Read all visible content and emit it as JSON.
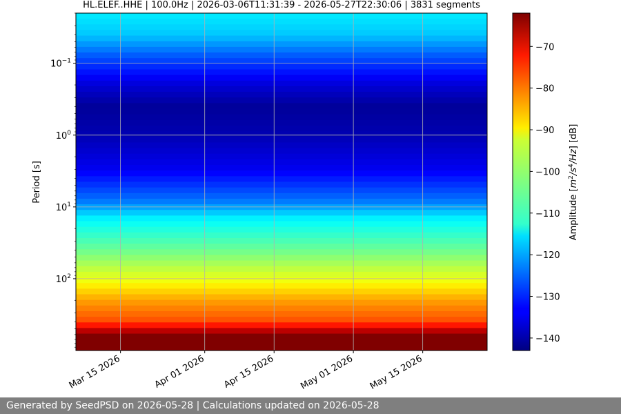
{
  "chart_data": {
    "type": "heatmap",
    "title": "HL.ELEF..HHE | 100.0Hz | 2026-03-06T11:31:39 - 2026-05-27T22:30:06 | 3831 segments",
    "ylabel": "Period [s]",
    "yscale": "log",
    "ylim": [
      0.02,
      1000
    ],
    "y_inverted": true,
    "xlim": [
      "2026-03-06",
      "2026-05-28"
    ],
    "x_ticks": [
      {
        "date": "2026-03-15",
        "label": "Mar 15 2026"
      },
      {
        "date": "2026-04-01",
        "label": "Apr 01 2026"
      },
      {
        "date": "2026-04-15",
        "label": "Apr 15 2026"
      },
      {
        "date": "2026-05-01",
        "label": "May 01 2026"
      },
      {
        "date": "2026-05-15",
        "label": "May 15 2026"
      }
    ],
    "y_ticks": [
      {
        "value": 0.1,
        "base": "10",
        "exp": "−1"
      },
      {
        "value": 1,
        "base": "10",
        "exp": "0"
      },
      {
        "value": 10,
        "base": "10",
        "exp": "1"
      },
      {
        "value": 100,
        "base": "10",
        "exp": "2"
      }
    ],
    "grid": true,
    "colormap": "jet",
    "profile": [
      {
        "period": 0.02,
        "db": -114
      },
      {
        "period": 0.04,
        "db": -117
      },
      {
        "period": 0.08,
        "db": -126
      },
      {
        "period": 0.2,
        "db": -136
      },
      {
        "period": 0.4,
        "db": -141
      },
      {
        "period": 1,
        "db": -139
      },
      {
        "period": 3,
        "db": -134
      },
      {
        "period": 8,
        "db": -124
      },
      {
        "period": 15,
        "db": -113
      },
      {
        "period": 40,
        "db": -104
      },
      {
        "period": 100,
        "db": -94
      },
      {
        "period": 200,
        "db": -85
      },
      {
        "period": 400,
        "db": -78
      },
      {
        "period": 600,
        "db": -62
      }
    ],
    "colorbar": {
      "label_text": "Amplitude [",
      "label_unit_parts": [
        "m",
        "2",
        "/s",
        "4",
        "/Hz"
      ],
      "label_suffix": "] [dB]",
      "range": [
        -143,
        -62
      ],
      "ticks": [
        {
          "value": -70,
          "label": "−70"
        },
        {
          "value": -80,
          "label": "−80"
        },
        {
          "value": -90,
          "label": "−90"
        },
        {
          "value": -100,
          "label": "−100"
        },
        {
          "value": -110,
          "label": "−110"
        },
        {
          "value": -120,
          "label": "−120"
        },
        {
          "value": -130,
          "label": "−130"
        },
        {
          "value": -140,
          "label": "−140"
        }
      ]
    }
  },
  "footer": {
    "text": "Generated by SeedPSD on 2026-05-28 | Calculations updated on 2026-05-28"
  }
}
